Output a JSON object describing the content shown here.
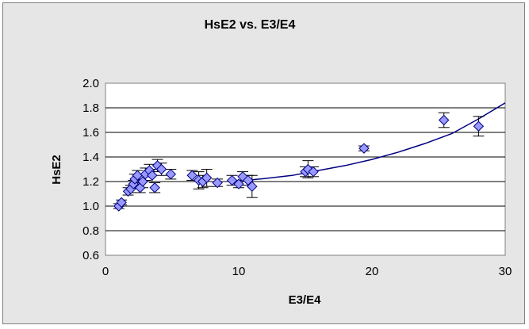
{
  "chart_data": {
    "type": "scatter",
    "title": "HsE2 vs. E3/E4",
    "xlabel": "E3/E4",
    "ylabel": "HsE2",
    "xlim": [
      0,
      30
    ],
    "ylim": [
      0.6,
      2.0
    ],
    "x_ticks": [
      "0",
      "10",
      "20",
      "30"
    ],
    "y_ticks": [
      "0.6",
      "0.8",
      "1.0",
      "1.2",
      "1.4",
      "1.6",
      "1.8",
      "2.0"
    ],
    "grid": "horizontal",
    "legend": "none",
    "colors": {
      "plot_background": "#ffffff",
      "chart_background": "#e6e6e6",
      "marker_fill": "#9999ff",
      "marker_edge": "#000080",
      "trendline": "#000080",
      "error_bar": "#000000"
    },
    "series": [
      {
        "marker": "diamond",
        "points": [
          {
            "x": 1.0,
            "y": 1.0,
            "err": 0.02
          },
          {
            "x": 1.2,
            "y": 1.03,
            "err": 0.02
          },
          {
            "x": 1.7,
            "y": 1.12,
            "err": 0.03
          },
          {
            "x": 1.9,
            "y": 1.14,
            "err": 0.03
          },
          {
            "x": 2.1,
            "y": 1.18,
            "err": 0.03
          },
          {
            "x": 2.2,
            "y": 1.22,
            "err": 0.04
          },
          {
            "x": 2.4,
            "y": 1.25,
            "err": 0.04
          },
          {
            "x": 2.6,
            "y": 1.15,
            "err": 0.04
          },
          {
            "x": 2.8,
            "y": 1.2,
            "err": 0.05
          },
          {
            "x": 3.0,
            "y": 1.26,
            "err": 0.05
          },
          {
            "x": 3.3,
            "y": 1.29,
            "err": 0.05
          },
          {
            "x": 3.5,
            "y": 1.25,
            "err": 0.05
          },
          {
            "x": 3.7,
            "y": 1.15,
            "err": 0.04
          },
          {
            "x": 3.9,
            "y": 1.33,
            "err": 0.05
          },
          {
            "x": 4.2,
            "y": 1.3,
            "err": 0.05
          },
          {
            "x": 4.9,
            "y": 1.26,
            "err": 0.04
          },
          {
            "x": 6.5,
            "y": 1.25,
            "err": 0.04
          },
          {
            "x": 7.0,
            "y": 1.21,
            "err": 0.07
          },
          {
            "x": 7.3,
            "y": 1.2,
            "err": 0.05
          },
          {
            "x": 7.6,
            "y": 1.23,
            "err": 0.07
          },
          {
            "x": 8.4,
            "y": 1.19,
            "err": 0.03
          },
          {
            "x": 9.5,
            "y": 1.21,
            "err": 0.04
          },
          {
            "x": 10.0,
            "y": 1.18,
            "err": 0.03
          },
          {
            "x": 10.3,
            "y": 1.24,
            "err": 0.04
          },
          {
            "x": 10.7,
            "y": 1.21,
            "err": 0.04
          },
          {
            "x": 11.0,
            "y": 1.16,
            "err": 0.09
          },
          {
            "x": 15.0,
            "y": 1.28,
            "err": 0.04
          },
          {
            "x": 15.2,
            "y": 1.3,
            "err": 0.07
          },
          {
            "x": 15.6,
            "y": 1.28,
            "err": 0.04
          },
          {
            "x": 19.4,
            "y": 1.47,
            "err": 0.02
          },
          {
            "x": 25.4,
            "y": 1.7,
            "err": 0.06
          },
          {
            "x": 28.0,
            "y": 1.65,
            "err": 0.08
          }
        ]
      }
    ],
    "trendline": {
      "x": [
        0,
        2,
        4,
        6,
        8,
        10,
        11,
        12,
        14,
        16,
        18,
        20,
        22,
        24,
        26,
        28,
        30
      ],
      "y": [
        1.03,
        1.16,
        1.23,
        1.24,
        1.225,
        1.215,
        1.215,
        1.225,
        1.25,
        1.29,
        1.33,
        1.38,
        1.44,
        1.51,
        1.59,
        1.71,
        1.84
      ]
    }
  }
}
